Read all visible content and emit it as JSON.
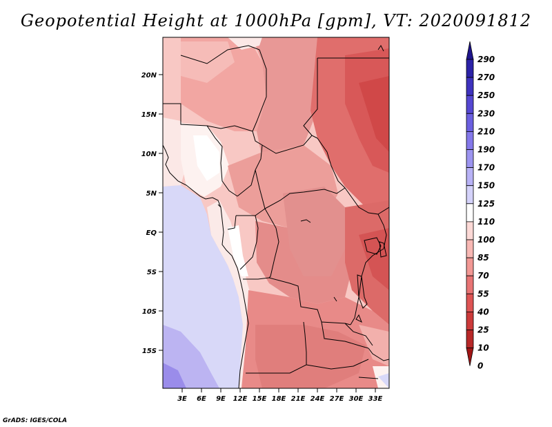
{
  "title": "Geopotential Height at 1000hPa [gpm], VT: 2020091812",
  "credit": "GrADS: IGES/COLA",
  "axes": {
    "lon_ticks": [
      "3E",
      "6E",
      "9E",
      "12E",
      "15E",
      "18E",
      "21E",
      "24E",
      "27E",
      "30E",
      "33E"
    ],
    "lat_ticks": [
      "20N",
      "15N",
      "10N",
      "5N",
      "EQ",
      "5S",
      "10S",
      "15S"
    ]
  },
  "colorbar": {
    "levels": [
      "290",
      "270",
      "250",
      "230",
      "210",
      "190",
      "170",
      "150",
      "125",
      "110",
      "100",
      "85",
      "70",
      "55",
      "40",
      "25",
      "10",
      "0"
    ],
    "colors": [
      "#1e148c",
      "#2c22a8",
      "#3e32be",
      "#5547d2",
      "#6b5fe0",
      "#8478ea",
      "#9c94f0",
      "#b8b2f6",
      "#d4d2fa",
      "#ffffff",
      "#fcd9d6",
      "#f8b8b4",
      "#f29894",
      "#e87474",
      "#de5454",
      "#cc3a3a",
      "#b82828",
      "#a01414"
    ]
  },
  "map": {
    "region_lon": [
      0,
      35
    ],
    "region_lat": [
      -20,
      25
    ]
  }
}
